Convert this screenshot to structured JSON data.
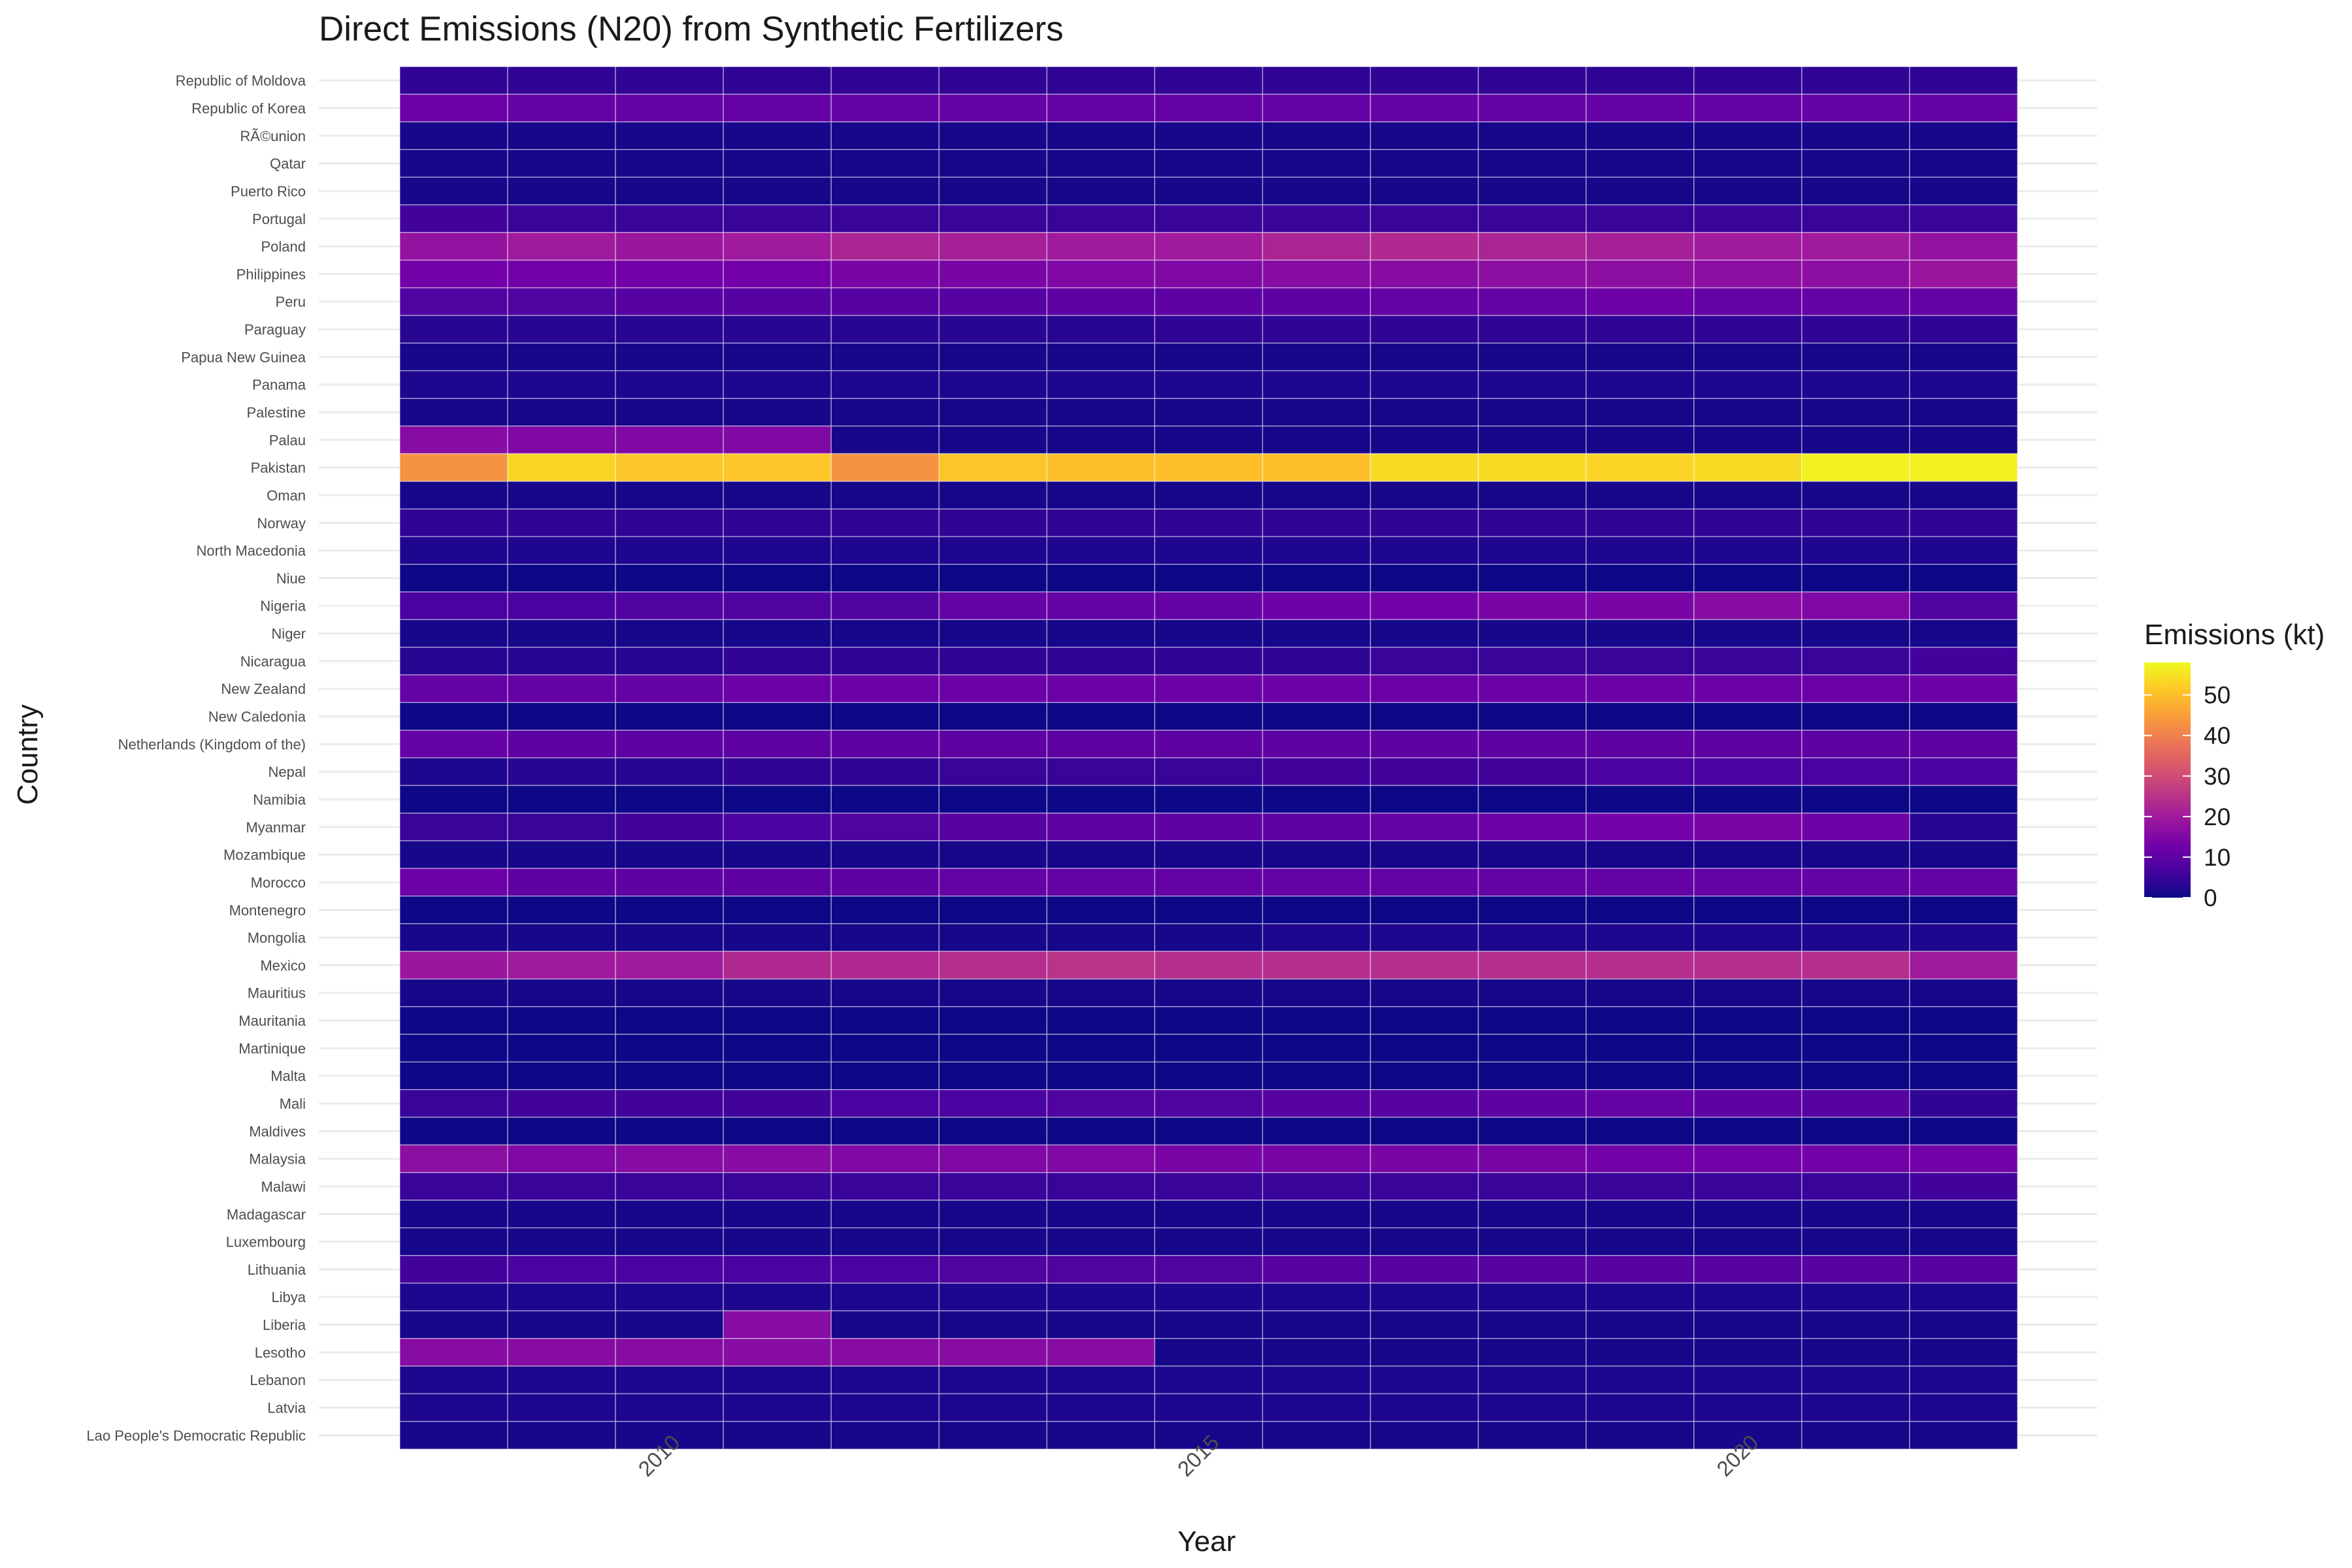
{
  "chart_data": {
    "type": "heatmap",
    "title": "Direct Emissions (N20) from Synthetic Fertilizers",
    "xlabel": "Year",
    "ylabel": "Country",
    "x": [
      2008,
      2009,
      2010,
      2011,
      2012,
      2013,
      2014,
      2015,
      2016,
      2017,
      2018,
      2019,
      2020,
      2021,
      2022
    ],
    "x_ticks": [
      "2010",
      "2015",
      "2020"
    ],
    "x_tick_values": [
      2010,
      2015,
      2020
    ],
    "rows": [
      {
        "name": "Republic of Moldova",
        "values": [
          4,
          4,
          4,
          4,
          4,
          4,
          4,
          4,
          4,
          4,
          4,
          4,
          4,
          4,
          4
        ]
      },
      {
        "name": "Republic of Korea",
        "values": [
          12,
          11,
          11,
          11,
          11,
          11,
          11,
          11,
          11,
          11,
          11,
          11,
          11,
          11,
          11
        ]
      },
      {
        "name": "RÃ©union",
        "values": [
          1,
          1,
          1,
          1,
          1,
          1,
          1,
          1,
          1,
          1,
          1,
          1,
          1,
          1,
          1
        ]
      },
      {
        "name": "Qatar",
        "values": [
          1,
          1,
          1,
          1,
          1,
          1,
          1,
          1,
          1,
          1,
          1,
          1,
          1,
          1,
          1
        ]
      },
      {
        "name": "Puerto Rico",
        "values": [
          1,
          1,
          1,
          1,
          1,
          1,
          1,
          1,
          1,
          1,
          1,
          1,
          1,
          1,
          1
        ]
      },
      {
        "name": "Portugal",
        "values": [
          6,
          5,
          5,
          5,
          5,
          5,
          5,
          5,
          5,
          5,
          5,
          5,
          5,
          5,
          5
        ]
      },
      {
        "name": "Poland",
        "values": [
          18,
          20,
          19,
          20,
          22,
          21,
          20,
          20,
          22,
          23,
          22,
          21,
          20,
          20,
          18
        ]
      },
      {
        "name": "Philippines",
        "values": [
          13,
          13,
          13,
          13,
          14,
          14,
          15,
          15,
          16,
          16,
          17,
          17,
          17,
          17,
          19
        ]
      },
      {
        "name": "Peru",
        "values": [
          8,
          8,
          9,
          9,
          9,
          9,
          10,
          10,
          10,
          11,
          11,
          12,
          11,
          11,
          11
        ]
      },
      {
        "name": "Paraguay",
        "values": [
          3,
          3,
          3,
          3,
          3,
          3,
          3,
          4,
          4,
          4,
          4,
          4,
          4,
          4,
          4
        ]
      },
      {
        "name": "Papua New Guinea",
        "values": [
          1,
          1,
          1,
          1,
          1,
          1,
          1,
          1,
          1,
          1,
          1,
          1,
          1,
          1,
          1
        ]
      },
      {
        "name": "Panama",
        "values": [
          2,
          2,
          2,
          2,
          2,
          2,
          2,
          2,
          2,
          2,
          2,
          2,
          2,
          2,
          2
        ]
      },
      {
        "name": "Palestine",
        "values": [
          1,
          1,
          1,
          1,
          1,
          1,
          1,
          1,
          1,
          1,
          1,
          1,
          1,
          1,
          1
        ]
      },
      {
        "name": "Palau",
        "values": [
          16,
          15,
          15,
          15,
          1,
          1,
          1,
          1,
          1,
          1,
          1,
          1,
          1,
          1,
          1
        ]
      },
      {
        "name": "Pakistan",
        "values": [
          43,
          53,
          51,
          51,
          43,
          51,
          50,
          50,
          50,
          54,
          54,
          53,
          54,
          57,
          57
        ]
      },
      {
        "name": "Oman",
        "values": [
          1,
          1,
          1,
          1,
          1,
          1,
          1,
          1,
          1,
          1,
          1,
          1,
          1,
          1,
          1
        ]
      },
      {
        "name": "Norway",
        "values": [
          4,
          4,
          4,
          4,
          4,
          4,
          4,
          4,
          4,
          4,
          4,
          4,
          4,
          4,
          4
        ]
      },
      {
        "name": "North Macedonia",
        "values": [
          2,
          2,
          2,
          2,
          2,
          2,
          2,
          2,
          2,
          2,
          2,
          2,
          2,
          2,
          2
        ]
      },
      {
        "name": "Niue",
        "values": [
          0,
          0,
          0,
          0,
          0,
          0,
          0,
          0,
          0,
          0,
          0,
          0,
          0,
          0,
          0
        ]
      },
      {
        "name": "Nigeria",
        "values": [
          7,
          7,
          8,
          8,
          8,
          11,
          11,
          11,
          12,
          13,
          14,
          14,
          16,
          15,
          8
        ]
      },
      {
        "name": "Niger",
        "values": [
          1,
          1,
          1,
          1,
          1,
          1,
          1,
          1,
          1,
          1,
          1,
          1,
          1,
          1,
          1
        ]
      },
      {
        "name": "Nicaragua",
        "values": [
          3,
          3,
          3,
          4,
          4,
          4,
          4,
          4,
          4,
          5,
          5,
          5,
          5,
          5,
          6
        ]
      },
      {
        "name": "New Zealand",
        "values": [
          11,
          11,
          11,
          12,
          12,
          12,
          12,
          12,
          12,
          12,
          12,
          12,
          12,
          12,
          12
        ]
      },
      {
        "name": "New Caledonia",
        "values": [
          0,
          0,
          0,
          0,
          0,
          0,
          0,
          0,
          0,
          0,
          0,
          0,
          0,
          0,
          0
        ]
      },
      {
        "name": "Netherlands (Kingdom of the)",
        "values": [
          11,
          10,
          10,
          10,
          10,
          10,
          10,
          10,
          10,
          10,
          10,
          10,
          10,
          10,
          10
        ]
      },
      {
        "name": "Nepal",
        "values": [
          2,
          3,
          3,
          4,
          4,
          5,
          5,
          5,
          6,
          6,
          6,
          7,
          7,
          7,
          7
        ]
      },
      {
        "name": "Namibia",
        "values": [
          0,
          0,
          0,
          0,
          0,
          0,
          0,
          0,
          0,
          0,
          0,
          0,
          0,
          0,
          0
        ]
      },
      {
        "name": "Myanmar",
        "values": [
          5,
          5,
          6,
          7,
          8,
          9,
          10,
          10,
          10,
          11,
          12,
          13,
          14,
          12,
          3
        ]
      },
      {
        "name": "Mozambique",
        "values": [
          1,
          1,
          1,
          1,
          1,
          1,
          1,
          1,
          1,
          1,
          1,
          1,
          1,
          1,
          1
        ]
      },
      {
        "name": "Morocco",
        "values": [
          12,
          10,
          10,
          10,
          10,
          11,
          11,
          11,
          11,
          11,
          11,
          11,
          11,
          11,
          11
        ]
      },
      {
        "name": "Montenegro",
        "values": [
          0,
          0,
          0,
          0,
          0,
          0,
          0,
          0,
          0,
          0,
          0,
          0,
          0,
          0,
          0
        ]
      },
      {
        "name": "Mongolia",
        "values": [
          1,
          1,
          1,
          1,
          1,
          1,
          1,
          1,
          2,
          2,
          2,
          2,
          2,
          2,
          2
        ]
      },
      {
        "name": "Mexico",
        "values": [
          19,
          20,
          20,
          23,
          23,
          24,
          25,
          24,
          24,
          24,
          24,
          24,
          24,
          24,
          20
        ]
      },
      {
        "name": "Mauritius",
        "values": [
          1,
          1,
          1,
          1,
          1,
          1,
          1,
          1,
          1,
          1,
          1,
          1,
          1,
          1,
          1
        ]
      },
      {
        "name": "Mauritania",
        "values": [
          0,
          0,
          0,
          0,
          0,
          0,
          0,
          0,
          0,
          0,
          0,
          0,
          0,
          0,
          0
        ]
      },
      {
        "name": "Martinique",
        "values": [
          0,
          0,
          0,
          0,
          0,
          0,
          0,
          0,
          0,
          0,
          0,
          0,
          0,
          0,
          0
        ]
      },
      {
        "name": "Malta",
        "values": [
          0,
          0,
          0,
          0,
          0,
          0,
          0,
          0,
          0,
          0,
          0,
          0,
          0,
          0,
          0
        ]
      },
      {
        "name": "Mali",
        "values": [
          5,
          6,
          6,
          6,
          7,
          7,
          8,
          8,
          9,
          9,
          10,
          11,
          10,
          9,
          4
        ]
      },
      {
        "name": "Maldives",
        "values": [
          0,
          0,
          0,
          0,
          0,
          0,
          0,
          0,
          0,
          0,
          0,
          0,
          0,
          0,
          0
        ]
      },
      {
        "name": "Malaysia",
        "values": [
          17,
          15,
          16,
          16,
          15,
          15,
          15,
          14,
          14,
          14,
          14,
          13,
          13,
          13,
          13
        ]
      },
      {
        "name": "Malawi",
        "values": [
          5,
          5,
          5,
          5,
          5,
          5,
          5,
          5,
          5,
          5,
          5,
          5,
          5,
          5,
          6
        ]
      },
      {
        "name": "Madagascar",
        "values": [
          1,
          1,
          1,
          1,
          1,
          1,
          1,
          1,
          1,
          1,
          1,
          1,
          1,
          1,
          1
        ]
      },
      {
        "name": "Luxembourg",
        "values": [
          1,
          1,
          1,
          1,
          1,
          1,
          1,
          1,
          1,
          1,
          1,
          1,
          1,
          1,
          1
        ]
      },
      {
        "name": "Lithuania",
        "values": [
          6,
          7,
          7,
          7,
          7,
          8,
          8,
          8,
          9,
          9,
          9,
          9,
          9,
          9,
          9
        ]
      },
      {
        "name": "Libya",
        "values": [
          2,
          2,
          2,
          2,
          2,
          2,
          2,
          2,
          2,
          2,
          2,
          2,
          2,
          2,
          2
        ]
      },
      {
        "name": "Liberia",
        "values": [
          1,
          1,
          1,
          16,
          1,
          1,
          1,
          1,
          1,
          1,
          1,
          1,
          1,
          1,
          1
        ]
      },
      {
        "name": "Lesotho",
        "values": [
          16,
          16,
          16,
          16,
          16,
          16,
          16,
          1,
          1,
          1,
          1,
          1,
          1,
          1,
          1
        ]
      },
      {
        "name": "Lebanon",
        "values": [
          2,
          2,
          2,
          2,
          2,
          2,
          2,
          2,
          2,
          2,
          2,
          2,
          2,
          2,
          2
        ]
      },
      {
        "name": "Latvia",
        "values": [
          2,
          2,
          2,
          2,
          2,
          2,
          2,
          2,
          2,
          2,
          2,
          2,
          2,
          2,
          2
        ]
      },
      {
        "name": "Lao People's Democratic Republic",
        "values": [
          1,
          1,
          1,
          1,
          1,
          1,
          1,
          1,
          1,
          1,
          1,
          1,
          1,
          1,
          1
        ]
      }
    ],
    "color_scale": {
      "name": "plasma",
      "min": 0,
      "max": 58,
      "stops": [
        "#0d0887",
        "#46039f",
        "#7201a8",
        "#9c179e",
        "#bd3786",
        "#d8576b",
        "#ed7953",
        "#fb9f3a",
        "#fdca26",
        "#f0f921"
      ]
    },
    "legend": {
      "title": "Emissions (kt)",
      "ticks": [
        "0",
        "10",
        "20",
        "30",
        "40",
        "50"
      ],
      "tick_values": [
        0,
        10,
        20,
        30,
        40,
        50
      ],
      "placement": "right"
    },
    "grid": true
  }
}
